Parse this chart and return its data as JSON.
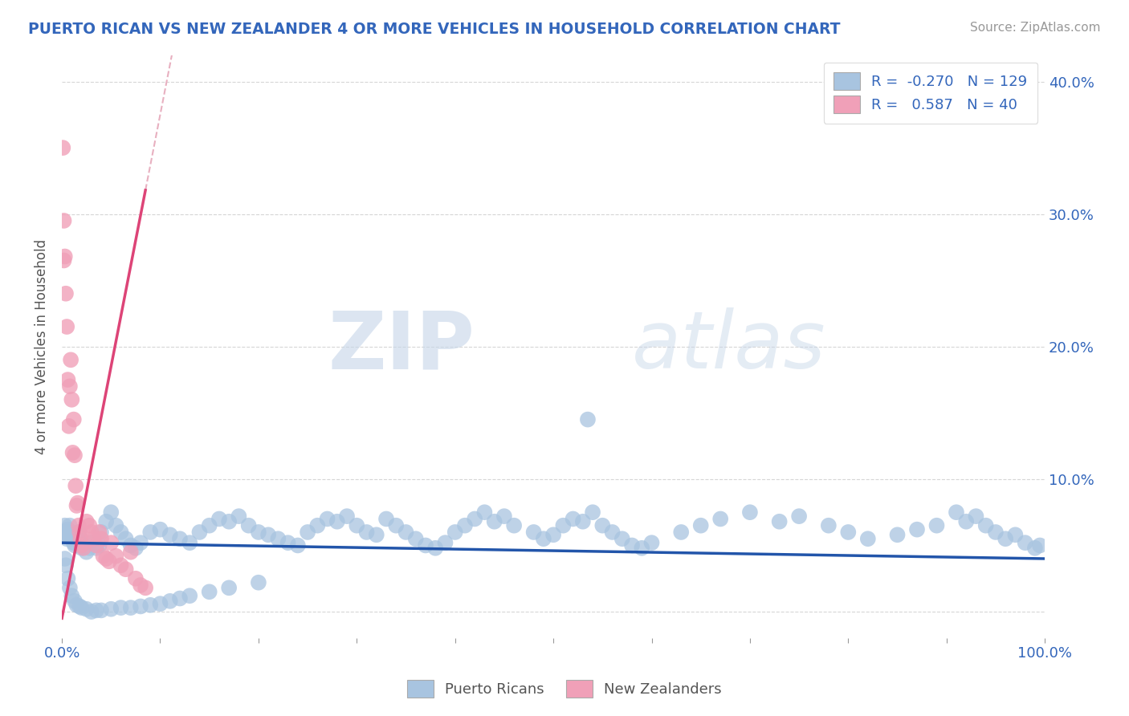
{
  "title": "PUERTO RICAN VS NEW ZEALANDER 4 OR MORE VEHICLES IN HOUSEHOLD CORRELATION CHART",
  "source": "Source: ZipAtlas.com",
  "ylabel": "4 or more Vehicles in Household",
  "xmin": 0.0,
  "xmax": 1.0,
  "ymin": -0.02,
  "ymax": 0.42,
  "yticks": [
    0.0,
    0.1,
    0.2,
    0.3,
    0.4
  ],
  "ytick_labels": [
    "",
    "10.0%",
    "20.0%",
    "30.0%",
    "40.0%"
  ],
  "blue_R": -0.27,
  "blue_N": 129,
  "pink_R": 0.587,
  "pink_N": 40,
  "blue_color": "#a8c4e0",
  "pink_color": "#f0a0b8",
  "blue_line_color": "#2255aa",
  "pink_line_color": "#dd4477",
  "dash_color": "#e8b0c0",
  "legend_label_blue": "Puerto Ricans",
  "legend_label_pink": "New Zealanders",
  "watermark_zip": "ZIP",
  "watermark_atlas": "atlas",
  "blue_intercept": 0.052,
  "blue_slope": -0.012,
  "pink_intercept": -0.005,
  "pink_slope": 3.8,
  "blue_scatter_x": [
    0.002,
    0.003,
    0.004,
    0.005,
    0.006,
    0.007,
    0.008,
    0.009,
    0.01,
    0.011,
    0.012,
    0.013,
    0.015,
    0.017,
    0.018,
    0.02,
    0.022,
    0.025,
    0.028,
    0.03,
    0.035,
    0.038,
    0.04,
    0.045,
    0.05,
    0.055,
    0.06,
    0.065,
    0.07,
    0.075,
    0.08,
    0.09,
    0.1,
    0.11,
    0.12,
    0.13,
    0.14,
    0.15,
    0.16,
    0.17,
    0.18,
    0.19,
    0.2,
    0.21,
    0.22,
    0.23,
    0.24,
    0.25,
    0.26,
    0.27,
    0.28,
    0.29,
    0.3,
    0.31,
    0.32,
    0.33,
    0.34,
    0.35,
    0.36,
    0.37,
    0.38,
    0.39,
    0.4,
    0.41,
    0.42,
    0.43,
    0.44,
    0.45,
    0.46,
    0.48,
    0.49,
    0.5,
    0.51,
    0.52,
    0.53,
    0.535,
    0.54,
    0.55,
    0.56,
    0.57,
    0.58,
    0.59,
    0.6,
    0.63,
    0.65,
    0.67,
    0.7,
    0.73,
    0.75,
    0.78,
    0.8,
    0.82,
    0.85,
    0.87,
    0.89,
    0.91,
    0.92,
    0.93,
    0.94,
    0.95,
    0.96,
    0.97,
    0.98,
    0.99,
    0.995,
    0.003,
    0.004,
    0.006,
    0.008,
    0.01,
    0.013,
    0.015,
    0.018,
    0.02,
    0.025,
    0.03,
    0.035,
    0.04,
    0.05,
    0.06,
    0.07,
    0.08,
    0.09,
    0.1,
    0.11,
    0.12,
    0.13,
    0.15,
    0.17,
    0.2
  ],
  "blue_scatter_y": [
    0.06,
    0.065,
    0.058,
    0.055,
    0.062,
    0.058,
    0.065,
    0.06,
    0.055,
    0.058,
    0.052,
    0.05,
    0.055,
    0.06,
    0.055,
    0.048,
    0.05,
    0.045,
    0.048,
    0.052,
    0.048,
    0.05,
    0.06,
    0.068,
    0.075,
    0.065,
    0.06,
    0.055,
    0.05,
    0.048,
    0.052,
    0.06,
    0.062,
    0.058,
    0.055,
    0.052,
    0.06,
    0.065,
    0.07,
    0.068,
    0.072,
    0.065,
    0.06,
    0.058,
    0.055,
    0.052,
    0.05,
    0.06,
    0.065,
    0.07,
    0.068,
    0.072,
    0.065,
    0.06,
    0.058,
    0.07,
    0.065,
    0.06,
    0.055,
    0.05,
    0.048,
    0.052,
    0.06,
    0.065,
    0.07,
    0.075,
    0.068,
    0.072,
    0.065,
    0.06,
    0.055,
    0.058,
    0.065,
    0.07,
    0.068,
    0.145,
    0.075,
    0.065,
    0.06,
    0.055,
    0.05,
    0.048,
    0.052,
    0.06,
    0.065,
    0.07,
    0.075,
    0.068,
    0.072,
    0.065,
    0.06,
    0.055,
    0.058,
    0.062,
    0.065,
    0.075,
    0.068,
    0.072,
    0.065,
    0.06,
    0.055,
    0.058,
    0.052,
    0.048,
    0.05,
    0.04,
    0.035,
    0.025,
    0.018,
    0.012,
    0.008,
    0.005,
    0.004,
    0.003,
    0.002,
    0.0,
    0.001,
    0.001,
    0.002,
    0.003,
    0.003,
    0.004,
    0.005,
    0.006,
    0.008,
    0.01,
    0.012,
    0.015,
    0.018,
    0.022
  ],
  "pink_scatter_x": [
    0.001,
    0.002,
    0.002,
    0.003,
    0.004,
    0.005,
    0.006,
    0.007,
    0.008,
    0.009,
    0.01,
    0.011,
    0.012,
    0.013,
    0.014,
    0.015,
    0.016,
    0.017,
    0.018,
    0.019,
    0.02,
    0.022,
    0.025,
    0.028,
    0.03,
    0.032,
    0.035,
    0.038,
    0.04,
    0.042,
    0.045,
    0.048,
    0.05,
    0.055,
    0.06,
    0.065,
    0.07,
    0.075,
    0.08,
    0.085
  ],
  "pink_scatter_y": [
    0.35,
    0.295,
    0.265,
    0.268,
    0.24,
    0.215,
    0.175,
    0.14,
    0.17,
    0.19,
    0.16,
    0.12,
    0.145,
    0.118,
    0.095,
    0.08,
    0.082,
    0.065,
    0.06,
    0.055,
    0.05,
    0.048,
    0.068,
    0.065,
    0.06,
    0.055,
    0.05,
    0.06,
    0.055,
    0.042,
    0.04,
    0.038,
    0.052,
    0.042,
    0.035,
    0.032,
    0.045,
    0.025,
    0.02,
    0.018
  ]
}
